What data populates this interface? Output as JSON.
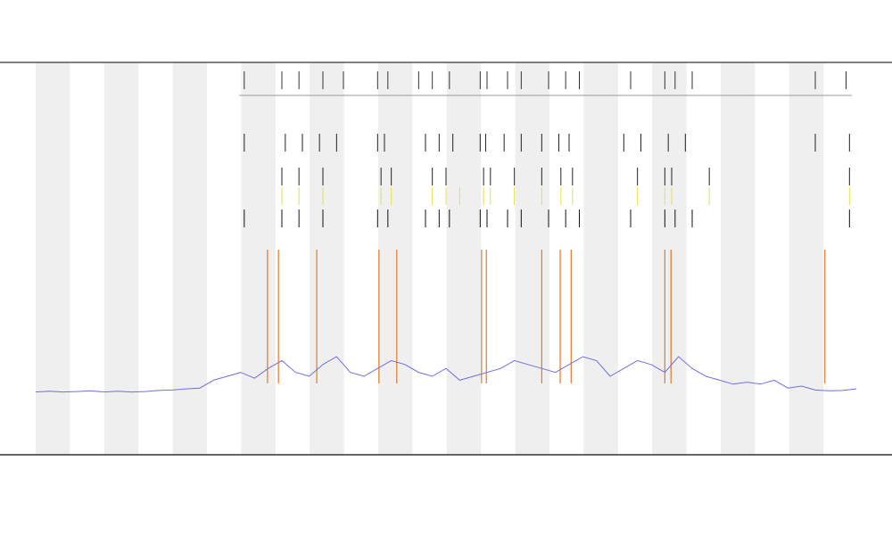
{
  "chart_data": {
    "type": "line",
    "xlim": [
      0,
      120
    ],
    "ylim": [
      0,
      100
    ],
    "x": [
      0,
      2,
      4,
      6,
      8,
      10,
      12,
      14,
      16,
      18,
      20,
      22,
      24,
      26,
      28,
      30,
      32,
      34,
      36,
      38,
      40,
      42,
      44,
      46,
      48,
      50,
      52,
      54,
      56,
      58,
      60,
      62,
      64,
      66,
      68,
      70,
      72,
      74,
      76,
      78,
      80,
      82,
      84,
      86,
      88,
      90,
      92,
      94,
      96,
      98,
      100,
      102,
      104,
      106,
      108,
      110,
      112,
      114,
      116,
      118,
      120
    ],
    "series": [
      {
        "color": "#6f6fe0",
        "values": [
          16,
          16.2,
          16,
          16.1,
          16.3,
          16,
          16.2,
          16,
          16.1,
          16.4,
          16.5,
          16.8,
          17,
          19,
          20,
          21,
          19.5,
          22,
          24,
          21,
          20,
          23,
          25,
          21,
          20,
          22,
          24,
          23,
          21,
          20,
          22,
          19,
          20,
          21,
          22,
          24,
          23,
          22,
          21,
          23,
          25,
          24,
          20,
          22,
          24,
          23,
          21,
          25,
          22,
          20,
          19,
          18,
          18.5,
          18,
          19,
          17,
          17.5,
          16.5,
          16.3,
          16.4,
          16.8
        ]
      }
    ],
    "events": {
      "color": "#e07a2a",
      "x": [
        33.9,
        35.5,
        41.1,
        50.2,
        52.8,
        65.2,
        65.9,
        74,
        76.7,
        78.3,
        92,
        92.9,
        115.4
      ]
    },
    "rasters": [
      {
        "color": "#333333",
        "x": [
          30.5,
          36,
          38.5,
          42,
          45,
          50,
          51.5,
          56,
          58,
          60.5,
          65,
          66,
          69,
          71,
          75,
          77.5,
          79.5,
          87,
          92,
          93.5,
          96,
          114,
          118.5
        ]
      },
      {
        "color": "#222222",
        "x": [
          30.5,
          36.5,
          39,
          41.5,
          44,
          50,
          51,
          57,
          59,
          61,
          65,
          65.8,
          68.5,
          71,
          74,
          76.5,
          78,
          86,
          88.5,
          92.5,
          95,
          114,
          119
        ]
      },
      {
        "color": "#222222",
        "x": [
          36,
          38.5,
          42,
          50.5,
          52,
          58,
          60,
          65.5,
          66.5,
          70,
          74,
          76.8,
          78.5,
          88,
          92,
          93,
          98.5,
          119
        ]
      },
      {
        "color": "#e6e04a",
        "x": [
          36,
          38.5,
          42,
          50.5,
          52,
          58,
          60,
          62,
          65.5,
          66.5,
          70,
          74,
          76.8,
          78.5,
          88,
          92,
          93,
          98.5,
          119
        ]
      },
      {
        "color": "#111111",
        "x": [
          30.5,
          36,
          38.5,
          42,
          50,
          51.5,
          57,
          59,
          60.5,
          65,
          66,
          69,
          71,
          75,
          77.5,
          79.5,
          87,
          92,
          93.5,
          96,
          119
        ]
      }
    ]
  }
}
